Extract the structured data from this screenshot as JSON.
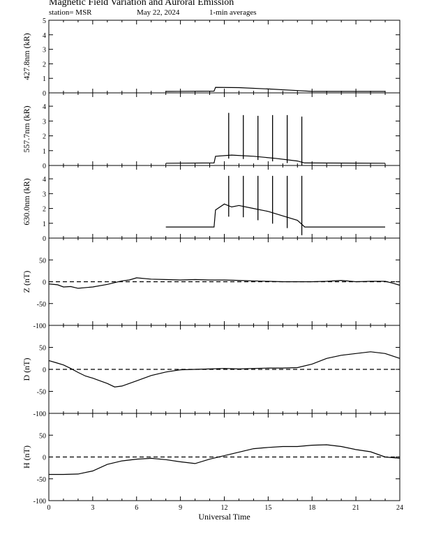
{
  "header": {
    "title": "Magnetic Field Variation and Auroral Emission",
    "station": "station= MSR",
    "date": "May 22, 2024",
    "averaging": "1-min averages"
  },
  "chart_data": [
    {
      "type": "line",
      "ylabel": "427.8nm (kR)",
      "ylim": [
        0,
        5
      ],
      "yticks": [
        0,
        1,
        2,
        3,
        4,
        5
      ],
      "xlim": [
        0,
        24
      ],
      "series": [
        {
          "x": [
            8.0,
            11.3,
            11.4,
            13.0,
            15.0,
            17.0,
            18.0,
            23.0
          ],
          "y": [
            0.1,
            0.12,
            0.38,
            0.36,
            0.27,
            0.16,
            0.1,
            0.1
          ]
        }
      ]
    },
    {
      "type": "line",
      "ylabel": "557.7nm (kR)",
      "ylim": [
        0,
        4.9
      ],
      "yticks": [
        0,
        1,
        2,
        3,
        4
      ],
      "xlim": [
        0,
        24
      ],
      "series": [
        {
          "x": [
            8.0,
            11.3,
            11.4,
            12.5,
            14.0,
            15.5,
            17.0,
            17.5,
            23.0
          ],
          "y": [
            0.15,
            0.17,
            0.62,
            0.7,
            0.62,
            0.48,
            0.3,
            0.17,
            0.15
          ]
        }
      ],
      "spikes": {
        "x": [
          12.3,
          13.3,
          14.3,
          15.3,
          16.3,
          17.3
        ],
        "y": [
          3.55,
          3.4,
          3.35,
          3.4,
          3.4,
          3.3
        ]
      }
    },
    {
      "type": "line",
      "ylabel": "630.0nm (kR)",
      "ylim": [
        0,
        4.9
      ],
      "yticks": [
        0,
        1,
        2,
        3,
        4
      ],
      "xlim": [
        0,
        24
      ],
      "series": [
        {
          "x": [
            8.0,
            11.3,
            11.4,
            12.0,
            12.5,
            13.0,
            14.0,
            15.0,
            16.0,
            17.0,
            17.5,
            23.0
          ],
          "y": [
            0.75,
            0.75,
            1.9,
            2.3,
            2.1,
            2.2,
            2.0,
            1.8,
            1.5,
            1.2,
            0.75,
            0.75
          ]
        }
      ],
      "spikes": {
        "x": [
          12.3,
          13.3,
          14.3,
          15.3,
          16.3,
          17.3
        ],
        "y": [
          4.2,
          4.2,
          4.2,
          4.2,
          4.2,
          4.2
        ]
      }
    },
    {
      "type": "line",
      "ylabel": "Z (nT)",
      "ylim": [
        -100,
        100
      ],
      "yticks": [
        -100,
        -50,
        0,
        50
      ],
      "xlim": [
        0,
        24
      ],
      "zero_line": true,
      "series": [
        {
          "x": [
            0,
            0.6,
            1,
            1.5,
            2,
            3,
            4,
            4.5,
            5,
            5.5,
            6,
            7,
            8,
            9,
            10,
            11,
            12,
            13,
            14,
            15,
            16,
            17,
            18,
            19,
            20,
            21,
            22,
            23,
            23.5,
            24
          ],
          "y": [
            -5,
            -7,
            -12,
            -11,
            -15,
            -12,
            -6,
            -2,
            2,
            4,
            9,
            6,
            5,
            4,
            5,
            4,
            4,
            3,
            2,
            1,
            0,
            0,
            0,
            1,
            3,
            0,
            1,
            1,
            -3,
            -8
          ]
        }
      ]
    },
    {
      "type": "line",
      "ylabel": "D (nT)",
      "ylim": [
        -100,
        100
      ],
      "yticks": [
        -100,
        -50,
        0,
        50
      ],
      "xlim": [
        0,
        24
      ],
      "zero_line": true,
      "series": [
        {
          "x": [
            0,
            0.5,
            1,
            1.5,
            2,
            2.5,
            3,
            3.5,
            4,
            4.5,
            5,
            6,
            7,
            8,
            9,
            10,
            11,
            12,
            13,
            14,
            15,
            16,
            17,
            18,
            19,
            20,
            21,
            22,
            23,
            24
          ],
          "y": [
            20,
            15,
            10,
            2,
            -7,
            -15,
            -20,
            -26,
            -32,
            -40,
            -38,
            -26,
            -14,
            -6,
            -1,
            0,
            1,
            2,
            1,
            2,
            3,
            3,
            4,
            12,
            25,
            32,
            36,
            40,
            36,
            25
          ]
        }
      ]
    },
    {
      "type": "line",
      "ylabel": "H (nT)",
      "ylim": [
        -100,
        100
      ],
      "yticks": [
        -100,
        -50,
        0,
        50
      ],
      "xlim": [
        0,
        24
      ],
      "xticks": [
        0,
        3,
        6,
        9,
        12,
        15,
        18,
        21,
        24
      ],
      "xlabel": "Universal Time",
      "zero_line": true,
      "series": [
        {
          "x": [
            0,
            1,
            2,
            3,
            4,
            5,
            6,
            7,
            8,
            9,
            10,
            11,
            12,
            13,
            14,
            15,
            16,
            17,
            18,
            19,
            20,
            21,
            22,
            23,
            24
          ],
          "y": [
            -40,
            -40,
            -39,
            -32,
            -17,
            -9,
            -5,
            -3,
            -6,
            -11,
            -15,
            -5,
            3,
            11,
            19,
            22,
            24,
            24,
            27,
            28,
            24,
            17,
            12,
            0,
            -3
          ]
        }
      ]
    }
  ]
}
